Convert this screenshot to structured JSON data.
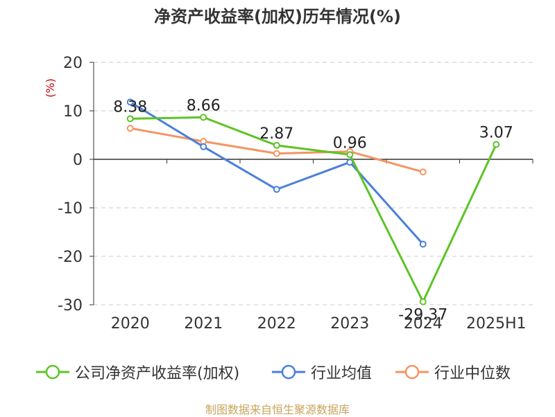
{
  "title": "净资产收益率(加权)历年情况(%)",
  "source": "制图数据来自恒生聚源数据库",
  "chart_data": {
    "type": "line",
    "title": "净资产收益率(加权)历年情况(%)",
    "ylabel": "(%)",
    "ylim": [
      -30,
      20
    ],
    "yticks": [
      20,
      10,
      0,
      -10,
      -20,
      -30
    ],
    "grid": true,
    "legend_position": "bottom",
    "categories": [
      "2020",
      "2021",
      "2022",
      "2023",
      "2024",
      "2025H1"
    ],
    "series": [
      {
        "name": "公司净资产收益率(加权)",
        "color": "#5cc424",
        "values": [
          8.38,
          8.66,
          2.87,
          0.96,
          -29.37,
          3.07
        ],
        "labels": [
          "8.38",
          "8.66",
          "2.87",
          "0.96",
          "-29.37",
          "3.07"
        ]
      },
      {
        "name": "行业均值",
        "color": "#4a7fdb",
        "values": [
          11.8,
          2.6,
          -6.2,
          -0.6,
          -17.5,
          null
        ]
      },
      {
        "name": "行业中位数",
        "color": "#f59462",
        "values": [
          6.4,
          3.7,
          1.2,
          1.6,
          -2.6,
          null
        ]
      }
    ]
  }
}
